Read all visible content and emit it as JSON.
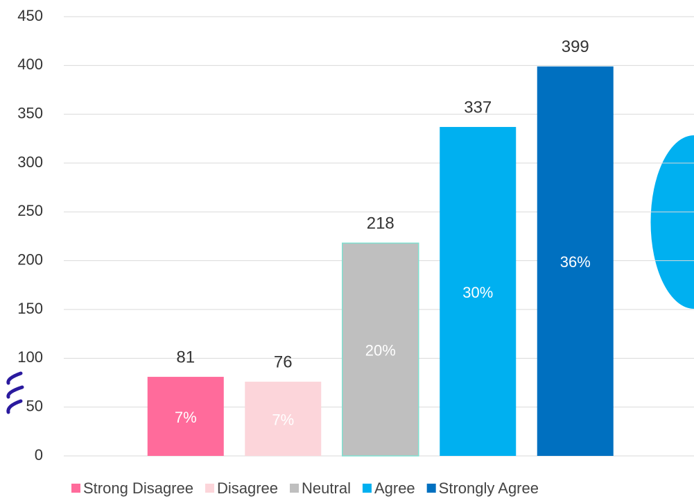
{
  "chart_data": {
    "type": "bar",
    "ylim": [
      0,
      450
    ],
    "yticks": [
      0,
      50,
      100,
      150,
      200,
      250,
      300,
      350,
      400,
      450
    ],
    "grid": true,
    "series": [
      {
        "name": "Strong Disagree",
        "color": "#ff6b9b",
        "values": [
          81
        ],
        "share": 7,
        "share_label": "7%"
      },
      {
        "name": "Disagree",
        "color": "#fcd5da",
        "values": [
          76
        ],
        "share": 7,
        "share_label": "7%"
      },
      {
        "name": "Neutral",
        "color": "#bfbfbf",
        "values": [
          218
        ],
        "share": 20,
        "share_label": "20%"
      },
      {
        "name": "Agree",
        "color": "#00b0f0",
        "values": [
          337
        ],
        "share": 30,
        "share_label": "30%"
      },
      {
        "name": "Strongly Agree",
        "color": "#0070c0",
        "values": [
          399
        ],
        "share": 36,
        "share_label": "36%"
      }
    ]
  }
}
